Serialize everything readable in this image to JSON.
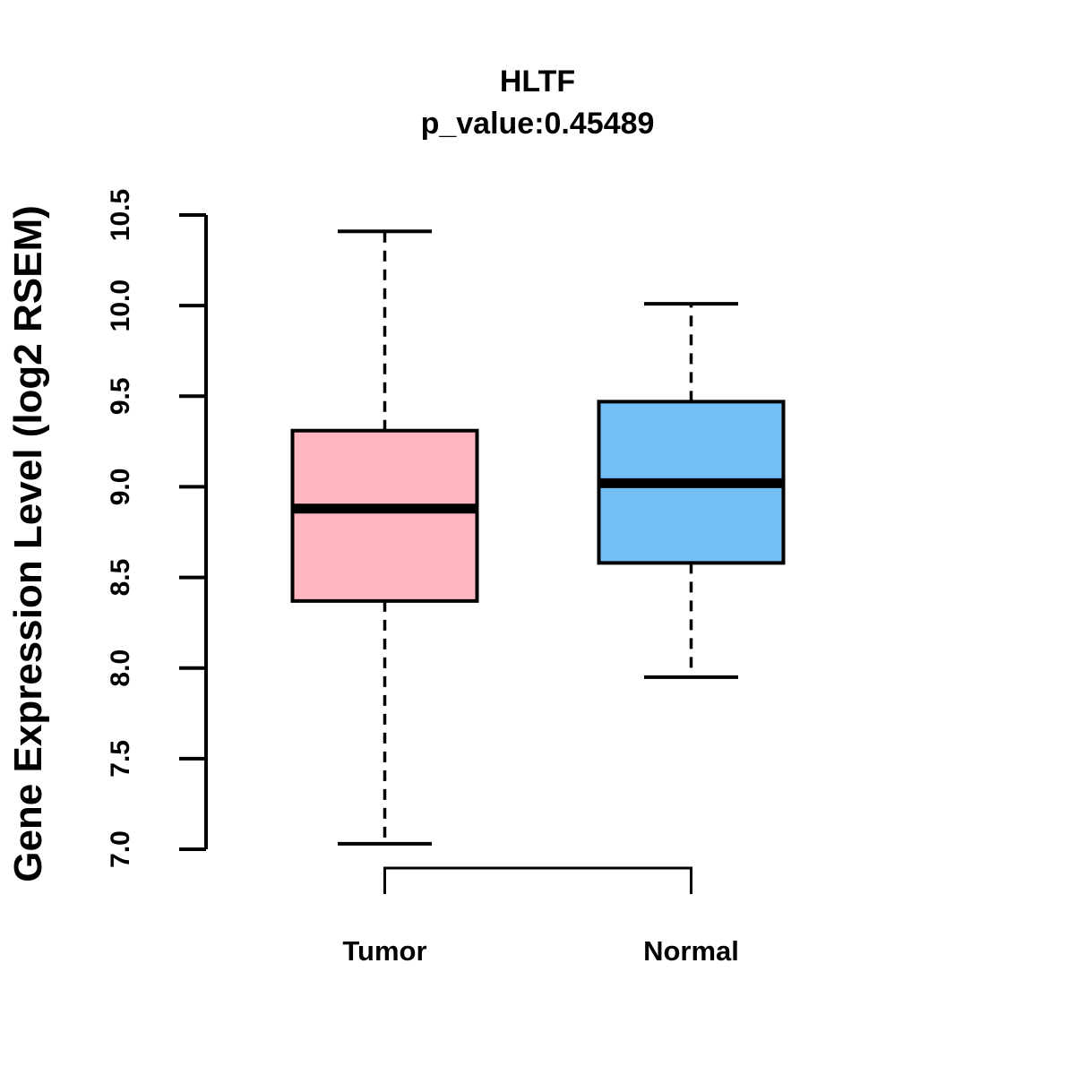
{
  "page": {
    "background_color": "#FFFFFF",
    "text_color": "#000000"
  },
  "chart_data": {
    "type": "boxplot",
    "title": "HLTF",
    "subtitle": "p_value:0.45489",
    "ylabel": "Gene Expression Level (log2 RSEM)",
    "xlabel": "",
    "ylim": [
      7.0,
      10.5
    ],
    "ytick_labels": [
      "7.0",
      "7.5",
      "8.0",
      "8.5",
      "9.0",
      "9.5",
      "10.0",
      "10.5"
    ],
    "ytick_values": [
      7.0,
      7.5,
      8.0,
      8.5,
      9.0,
      9.5,
      10.0,
      10.5
    ],
    "grid": false,
    "legend": "none",
    "stroke_color": "#000000",
    "categories": [
      "Tumor",
      "Normal"
    ],
    "groups": [
      {
        "label": "Tumor",
        "fill_color": "#FFB6C1",
        "whisker_low": 7.03,
        "q1": 8.37,
        "median": 8.88,
        "q3": 9.31,
        "whisker_high": 10.41
      },
      {
        "label": "Normal",
        "fill_color": "#74BFF7",
        "whisker_low": 7.95,
        "q1": 8.58,
        "median": 9.02,
        "q3": 9.47,
        "whisker_high": 10.01
      }
    ],
    "comparison_bracket": {
      "between": [
        "Tumor",
        "Normal"
      ]
    }
  }
}
